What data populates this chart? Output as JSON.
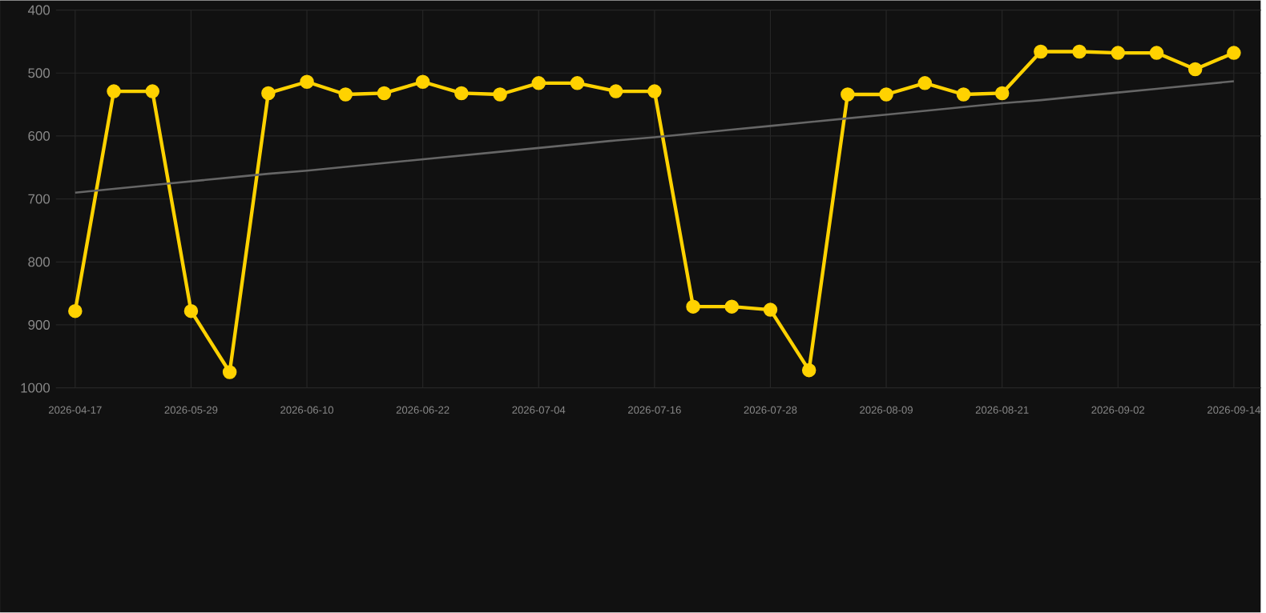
{
  "chart_data": {
    "type": "line",
    "categories": [
      "2026-04-17",
      null,
      null,
      "2026-05-29",
      null,
      null,
      "2026-06-10",
      null,
      null,
      "2026-06-22",
      null,
      null,
      "2026-07-04",
      null,
      null,
      "2026-07-16",
      null,
      null,
      "2026-07-28",
      null,
      null,
      "2026-08-09",
      null,
      null,
      "2026-08-21",
      null,
      null,
      "2026-09-02",
      null,
      null,
      "2026-09-14"
    ],
    "ylim": [
      1000,
      400
    ],
    "yticks": [
      400,
      500,
      600,
      700,
      800,
      900,
      1000
    ],
    "grid": true,
    "series": [
      {
        "color": "#ffd200",
        "marker": "circle",
        "values": [
          878,
          529,
          529,
          878,
          975,
          532,
          514,
          534,
          532,
          514,
          532,
          534,
          516,
          516,
          529,
          529,
          871,
          871,
          876,
          972,
          534,
          534,
          516,
          534,
          532,
          466,
          466,
          468,
          468,
          494,
          468
        ]
      },
      {
        "color": "#666666",
        "marker": "none",
        "values": [
          690,
          684,
          678,
          672,
          666,
          660,
          655,
          649,
          643,
          637,
          631,
          625,
          619,
          613,
          607,
          602,
          596,
          590,
          584,
          578,
          572,
          566,
          560,
          554,
          548,
          543,
          537,
          531,
          525,
          519,
          513
        ]
      }
    ]
  }
}
